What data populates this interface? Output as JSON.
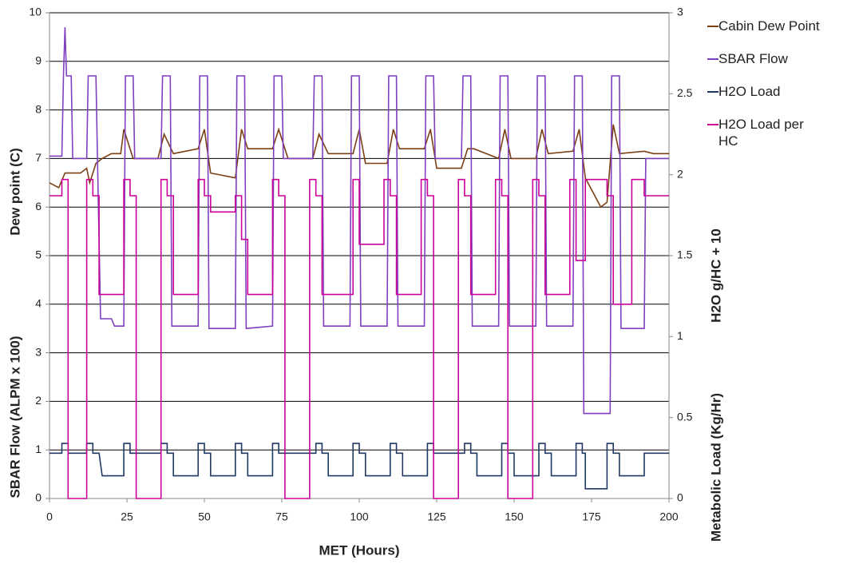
{
  "chart_data": {
    "type": "line",
    "xlabel": "MET (Hours)",
    "ylabel": [
      "Dew point (C)",
      "SBAR Flow (ALPM x 100)"
    ],
    "y2label": [
      "H2O g/HC + 10",
      "Metabolic Load (Kg/Hr)"
    ],
    "xlim": [
      0,
      200
    ],
    "xticks": [
      0,
      25,
      50,
      75,
      100,
      125,
      150,
      175,
      200
    ],
    "ylim": [
      0,
      10
    ],
    "yticks": [
      0,
      1,
      2,
      3,
      4,
      5,
      6,
      7,
      8,
      9,
      10
    ],
    "y2lim": [
      0,
      3
    ],
    "y2ticks": [
      0,
      0.5,
      1,
      1.5,
      2,
      2.5,
      3
    ],
    "grid": true,
    "legend": "right",
    "series": [
      {
        "name": "Cabin Dew Point",
        "color": "#7b3f12",
        "axis": "y",
        "x": [
          0,
          3,
          5,
          10,
          12,
          13,
          15,
          17,
          20,
          23,
          24,
          27,
          35,
          37,
          40,
          48,
          50,
          52,
          60,
          62,
          64,
          72,
          74,
          77,
          85,
          87,
          90,
          98,
          100,
          102,
          109,
          111,
          113,
          121,
          123,
          125,
          133,
          135,
          137,
          145,
          147,
          149,
          157,
          159,
          161,
          169,
          171,
          173,
          178,
          180,
          182,
          184,
          192,
          195,
          200
        ],
        "values": [
          6.5,
          6.4,
          6.7,
          6.7,
          6.8,
          6.5,
          6.9,
          7.0,
          7.1,
          7.1,
          7.6,
          7.0,
          7.0,
          7.5,
          7.1,
          7.2,
          7.6,
          6.7,
          6.6,
          7.6,
          7.2,
          7.2,
          7.6,
          7.0,
          7.0,
          7.5,
          7.1,
          7.1,
          7.6,
          6.9,
          6.9,
          7.6,
          7.2,
          7.2,
          7.6,
          6.8,
          6.8,
          7.2,
          7.2,
          7.0,
          7.6,
          7.0,
          7.0,
          7.6,
          7.1,
          7.15,
          7.6,
          6.6,
          6.0,
          6.1,
          7.7,
          7.1,
          7.15,
          7.1,
          7.1
        ]
      },
      {
        "name": "SBAR Flow",
        "color": "#7f3fbf",
        "axis": "y",
        "x": [
          0,
          4,
          4.5,
          5,
          5.5,
          7,
          7.5,
          12,
          12.5,
          15,
          15.5,
          16.5,
          20,
          21,
          24,
          24.5,
          27,
          27.5,
          36,
          36.5,
          39,
          39.5,
          48,
          48.5,
          51,
          51.5,
          60,
          60.5,
          63,
          63.5,
          72,
          72.5,
          75,
          75.5,
          85,
          85.5,
          88,
          88.5,
          97,
          97.5,
          100,
          100.5,
          109,
          109.5,
          112,
          112.5,
          121,
          121.5,
          124,
          124.5,
          133,
          133.5,
          136,
          136.5,
          145,
          145.5,
          148,
          148.5,
          157,
          157.5,
          160,
          160.5,
          169,
          169.5,
          172,
          172.5,
          181,
          181.5,
          184,
          184.5,
          192,
          192.5,
          200
        ],
        "values": [
          7.05,
          7.05,
          8.7,
          9.7,
          8.7,
          8.7,
          7.0,
          7.0,
          8.7,
          8.7,
          7.0,
          3.7,
          3.7,
          3.55,
          3.55,
          8.7,
          8.7,
          7.0,
          7.0,
          8.7,
          8.7,
          3.55,
          3.55,
          8.7,
          8.7,
          3.5,
          3.5,
          8.7,
          8.7,
          3.5,
          3.55,
          8.7,
          8.7,
          7.0,
          7.0,
          8.7,
          8.7,
          3.55,
          3.55,
          8.7,
          8.7,
          3.55,
          3.55,
          8.7,
          8.7,
          3.55,
          3.55,
          8.7,
          8.7,
          7.0,
          7.0,
          8.7,
          8.7,
          3.55,
          3.55,
          8.7,
          8.7,
          3.55,
          3.55,
          8.7,
          8.7,
          3.55,
          3.55,
          8.7,
          8.7,
          1.75,
          1.75,
          8.7,
          8.7,
          3.5,
          3.5,
          7.0,
          7.0
        ]
      },
      {
        "name": "H2O Load",
        "color": "#1f3864",
        "axis": "y2",
        "x": [
          0,
          4,
          4,
          6,
          6,
          12,
          12,
          14,
          14,
          16,
          17,
          24,
          24,
          26,
          26,
          36,
          36,
          38,
          38,
          40,
          40,
          48,
          48,
          50,
          50,
          52,
          52,
          60,
          60,
          62,
          62,
          64,
          64,
          72,
          72,
          74,
          74,
          86,
          86,
          88,
          88,
          90,
          90,
          98,
          98,
          100,
          100,
          102,
          102,
          110,
          110,
          112,
          112,
          114,
          114,
          122,
          122,
          124,
          124,
          134,
          134,
          136,
          136,
          138,
          138,
          146,
          146,
          148,
          148,
          150,
          150,
          158,
          158,
          160,
          160,
          162,
          162,
          170,
          170,
          172,
          172,
          173,
          173,
          180,
          180,
          182,
          182,
          184,
          184,
          192,
          192,
          200
        ],
        "values": [
          0.28,
          0.28,
          0.34,
          0.34,
          0.28,
          0.28,
          0.34,
          0.34,
          0.28,
          0.28,
          0.14,
          0.14,
          0.34,
          0.34,
          0.28,
          0.28,
          0.34,
          0.34,
          0.28,
          0.28,
          0.14,
          0.14,
          0.34,
          0.34,
          0.28,
          0.28,
          0.14,
          0.14,
          0.34,
          0.34,
          0.28,
          0.28,
          0.14,
          0.14,
          0.34,
          0.34,
          0.28,
          0.28,
          0.34,
          0.34,
          0.28,
          0.28,
          0.14,
          0.14,
          0.34,
          0.34,
          0.28,
          0.28,
          0.14,
          0.14,
          0.34,
          0.34,
          0.28,
          0.28,
          0.14,
          0.14,
          0.34,
          0.34,
          0.28,
          0.28,
          0.34,
          0.34,
          0.28,
          0.28,
          0.14,
          0.14,
          0.34,
          0.34,
          0.28,
          0.28,
          0.14,
          0.14,
          0.34,
          0.34,
          0.28,
          0.28,
          0.14,
          0.14,
          0.34,
          0.34,
          0.28,
          0.28,
          0.06,
          0.06,
          0.34,
          0.34,
          0.28,
          0.28,
          0.14,
          0.14,
          0.28,
          0.28
        ]
      },
      {
        "name": "H2O Load per HC",
        "color": "#cc0099",
        "axis": "y2",
        "x": [
          0,
          4,
          4,
          6,
          6,
          12,
          12,
          14,
          14,
          16,
          16,
          24,
          24,
          26,
          26,
          28,
          28,
          36,
          36,
          38,
          38,
          40,
          40,
          48,
          48,
          50,
          50,
          52,
          52,
          60,
          60,
          62,
          62,
          64,
          64,
          72,
          72,
          74,
          74,
          76,
          76,
          84,
          84,
          86,
          86,
          88,
          88,
          98,
          98,
          100,
          100,
          108,
          108,
          110,
          110,
          112,
          112,
          120,
          120,
          122,
          122,
          124,
          124,
          132,
          132,
          134,
          134,
          136,
          136,
          144,
          144,
          146,
          146,
          148,
          148,
          156,
          156,
          158,
          158,
          160,
          160,
          168,
          168,
          170,
          170,
          173,
          173,
          180,
          180,
          182,
          182,
          188,
          188,
          192,
          192,
          200
        ],
        "values": [
          1.87,
          1.87,
          1.97,
          1.97,
          0,
          0,
          1.97,
          1.97,
          1.87,
          1.87,
          1.26,
          1.26,
          1.97,
          1.97,
          1.87,
          1.87,
          0,
          0,
          1.97,
          1.97,
          1.87,
          1.87,
          1.26,
          1.26,
          1.97,
          1.97,
          1.87,
          1.87,
          1.77,
          1.77,
          1.87,
          1.87,
          1.6,
          1.6,
          1.26,
          1.26,
          1.97,
          1.97,
          1.87,
          1.87,
          0,
          0,
          1.97,
          1.97,
          1.87,
          1.87,
          1.26,
          1.26,
          1.97,
          1.97,
          1.57,
          1.57,
          1.97,
          1.97,
          1.87,
          1.87,
          1.26,
          1.26,
          1.97,
          1.97,
          1.87,
          1.87,
          0,
          0,
          1.97,
          1.97,
          1.87,
          1.87,
          1.26,
          1.26,
          1.97,
          1.97,
          1.87,
          1.87,
          0,
          0,
          1.97,
          1.97,
          1.87,
          1.87,
          1.26,
          1.26,
          1.97,
          1.97,
          1.47,
          1.47,
          1.97,
          1.97,
          1.87,
          1.87,
          1.2,
          1.2,
          1.97,
          1.97,
          1.87,
          1.87
        ]
      }
    ]
  }
}
